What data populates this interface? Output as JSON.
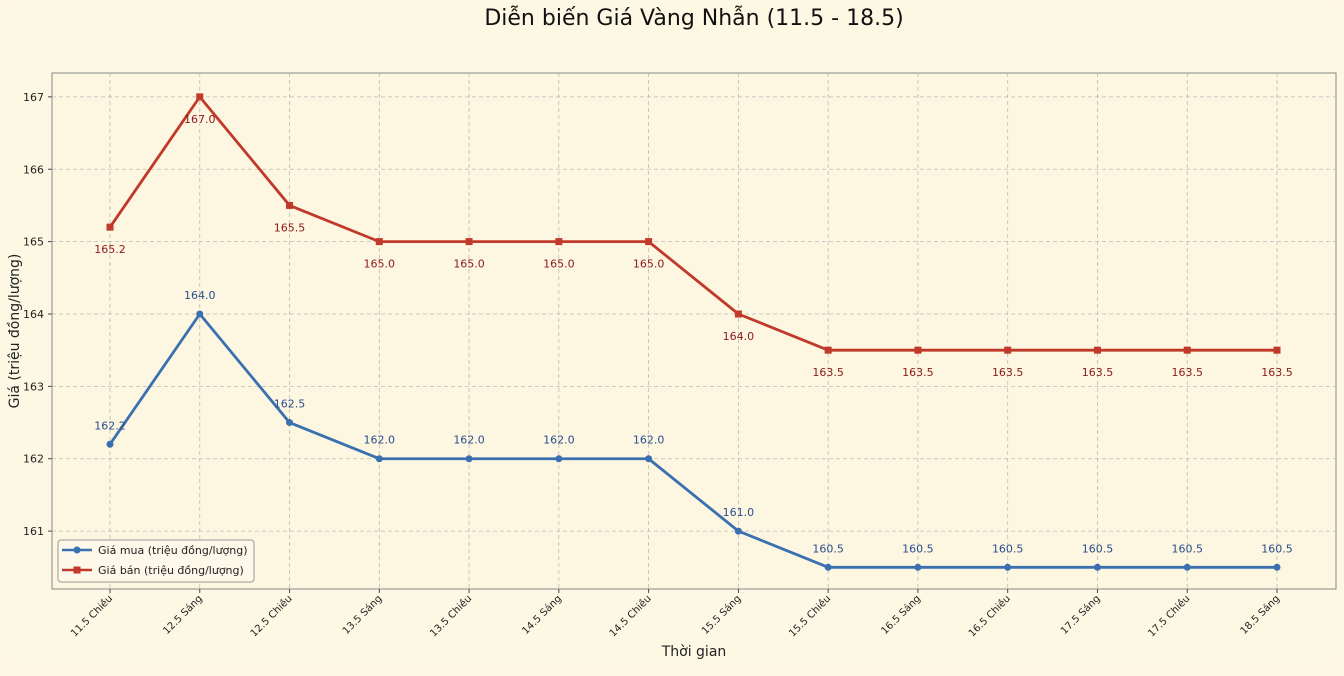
{
  "chart_data": {
    "type": "line",
    "title": "Diễn biến Giá Vàng Nhẫn (11.5 - 18.5)",
    "xlabel": "Thời gian",
    "ylabel": "Giá (triệu đồng/lượng)",
    "categories": [
      "11.5 Chiều",
      "12.5 Sáng",
      "12.5 Chiều",
      "13.5 Sáng",
      "13.5 Chiều",
      "14.5 Sáng",
      "14.5 Chiều",
      "15.5 Sáng",
      "15.5 Chiều",
      "16.5 Sáng",
      "16.5 Chiều",
      "17.5 Sáng",
      "17.5 Chiều",
      "18.5 Sáng"
    ],
    "yticks": [
      161,
      162,
      163,
      164,
      165,
      166,
      167
    ],
    "ylim": [
      160.2,
      167.33
    ],
    "grid": true,
    "legend_position": "bottom-left",
    "series": [
      {
        "name": "Giá mua (triệu đồng/lượng)",
        "color": "#3a70b0",
        "marker": "circle",
        "values": [
          162.2,
          164.0,
          162.5,
          162.0,
          162.0,
          162.0,
          162.0,
          161.0,
          160.5,
          160.5,
          160.5,
          160.5,
          160.5,
          160.5
        ],
        "labels": [
          "162.2",
          "164.0",
          "162.5",
          "162.0",
          "162.0",
          "162.0",
          "162.0",
          "161.0",
          "160.5",
          "160.5",
          "160.5",
          "160.5",
          "160.5",
          "160.5"
        ]
      },
      {
        "name": "Giá bán (triệu đồng/lượng)",
        "color": "#c0392b",
        "marker": "square",
        "values": [
          165.2,
          167.0,
          165.5,
          165.0,
          165.0,
          165.0,
          165.0,
          164.0,
          163.5,
          163.5,
          163.5,
          163.5,
          163.5,
          163.5
        ],
        "labels": [
          "165.2",
          "167.0",
          "165.5",
          "165.0",
          "165.0",
          "165.0",
          "165.0",
          "164.0",
          "163.5",
          "163.5",
          "163.5",
          "163.5",
          "163.5",
          "163.5"
        ]
      }
    ]
  }
}
